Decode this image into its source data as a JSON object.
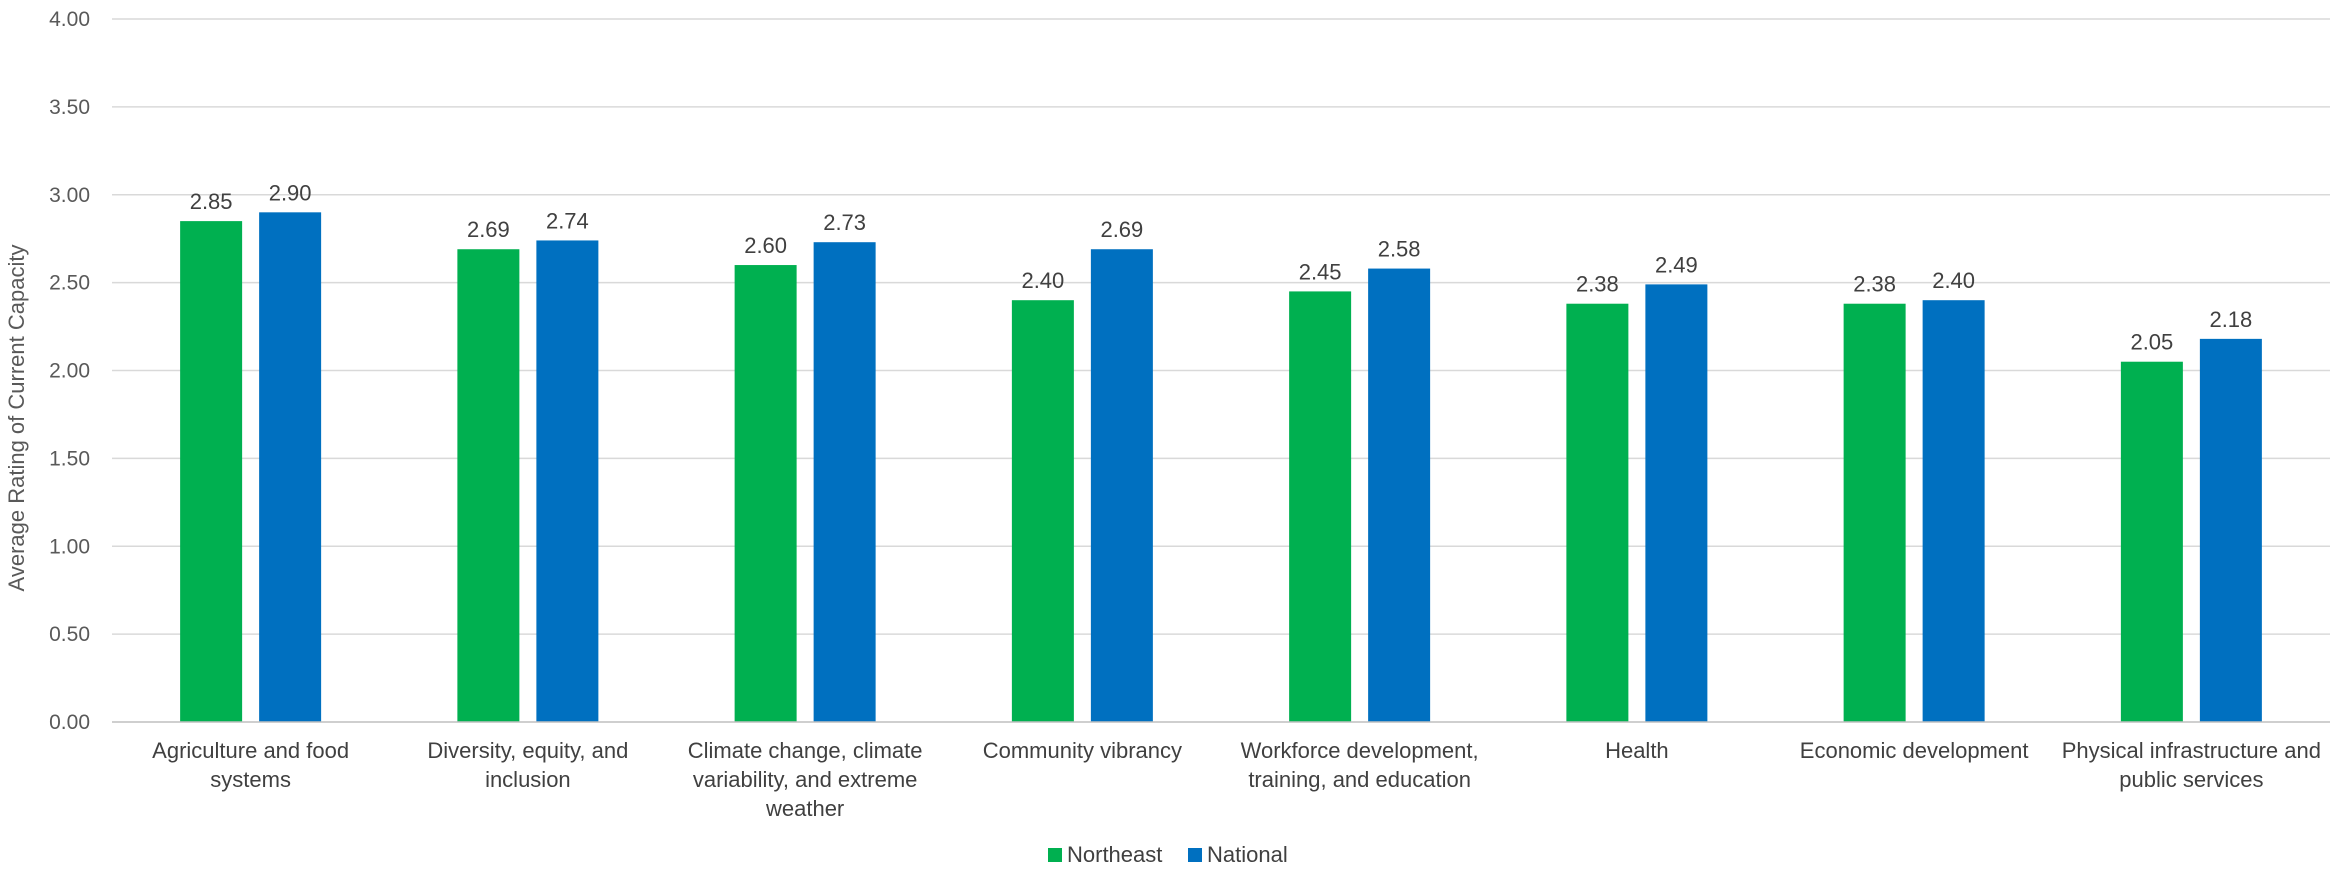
{
  "chart_data": {
    "type": "bar",
    "title": "",
    "xlabel": "",
    "ylabel": "Average Rating of Current Capacity",
    "ylim": [
      0,
      4
    ],
    "yticks": [
      "0.00",
      "0.50",
      "1.00",
      "1.50",
      "2.00",
      "2.50",
      "3.00",
      "3.50",
      "4.00"
    ],
    "grid": true,
    "legend_position": "bottom",
    "categories": [
      [
        "Agriculture and food",
        "systems"
      ],
      [
        "Diversity, equity, and",
        "inclusion"
      ],
      [
        "Climate change, climate",
        "variability, and extreme",
        "weather"
      ],
      [
        "Community vibrancy"
      ],
      [
        "Workforce development,",
        "training, and education"
      ],
      [
        "Health"
      ],
      [
        "Economic development"
      ],
      [
        "Physical infrastructure and",
        "public services"
      ]
    ],
    "series": [
      {
        "name": "Northeast",
        "color": "#00b050",
        "values": [
          2.85,
          2.69,
          2.6,
          2.4,
          2.45,
          2.38,
          2.38,
          2.05
        ],
        "labels": [
          "2.85",
          "2.69",
          "2.60",
          "2.40",
          "2.45",
          "2.38",
          "2.38",
          "2.05"
        ]
      },
      {
        "name": "National",
        "color": "#0070c0",
        "values": [
          2.9,
          2.74,
          2.73,
          2.69,
          2.58,
          2.49,
          2.4,
          2.18
        ],
        "labels": [
          "2.90",
          "2.74",
          "2.73",
          "2.69",
          "2.58",
          "2.49",
          "2.40",
          "2.18"
        ]
      }
    ]
  }
}
